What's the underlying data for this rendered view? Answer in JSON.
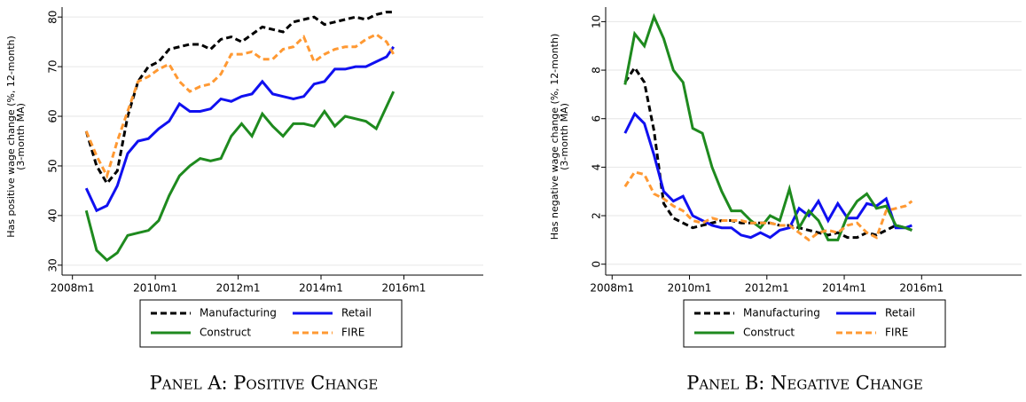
{
  "chart_data": [
    {
      "type": "line",
      "caption": "Panel A: Positive Change",
      "ylabel": [
        "Has positive wage change (%, 12-month)",
        "(3-month MA)"
      ],
      "x": [
        "2008m5",
        "2008m8",
        "2008m11",
        "2009m2",
        "2009m5",
        "2009m8",
        "2009m11",
        "2010m2",
        "2010m5",
        "2010m8",
        "2010m11",
        "2011m2",
        "2011m5",
        "2011m8",
        "2011m11",
        "2012m2",
        "2012m5",
        "2012m8",
        "2012m11",
        "2013m2",
        "2013m5",
        "2013m8",
        "2013m11",
        "2014m2",
        "2014m5",
        "2014m8",
        "2014m11",
        "2015m2",
        "2015m5",
        "2015m8",
        "2015m10"
      ],
      "xlim": [
        "2007m10",
        "2017m12"
      ],
      "xticks": [
        "2008m1",
        "2010m1",
        "2012m1",
        "2014m1",
        "2016m1"
      ],
      "ylim": [
        28,
        82
      ],
      "yticks": [
        30,
        40,
        50,
        60,
        70,
        80
      ],
      "grid": true,
      "series": [
        {
          "name": "Manufacturing",
          "color": "#000000",
          "dashed": true,
          "values": [
            57,
            50,
            46.5,
            49,
            60,
            67,
            70,
            71,
            73.5,
            74,
            74.5,
            74.5,
            73.5,
            75.5,
            76,
            75,
            76.5,
            78,
            77.5,
            77,
            79,
            79.5,
            80,
            78.5,
            79,
            79.5,
            80,
            79.5,
            80.5,
            81,
            81
          ]
        },
        {
          "name": "Retail",
          "color": "#1010f0",
          "dashed": false,
          "values": [
            45.5,
            41,
            42,
            46,
            52.5,
            55,
            55.5,
            57.5,
            59,
            62.5,
            61,
            61,
            61.5,
            63.5,
            63,
            64,
            64.5,
            67,
            64.5,
            64,
            63.5,
            64,
            66.5,
            67,
            69.5,
            69.5,
            70,
            70,
            71,
            72,
            74
          ]
        },
        {
          "name": "Construct",
          "color": "#1e8a1e",
          "dashed": false,
          "values": [
            41,
            33,
            31,
            32.5,
            36,
            36.5,
            37,
            39,
            44,
            48,
            50,
            51.5,
            51,
            51.5,
            56,
            58.5,
            56,
            60.5,
            58,
            56,
            58.5,
            58.5,
            58,
            61,
            58,
            60,
            59.5,
            59,
            57.5,
            62,
            65
          ]
        },
        {
          "name": "FIRE",
          "color": "#ff9933",
          "dashed": true,
          "values": [
            57,
            52,
            48,
            55,
            61,
            67,
            68,
            69.5,
            70.5,
            67,
            65,
            66,
            66.5,
            68.5,
            72.5,
            72.5,
            73,
            71.5,
            71.5,
            73.5,
            74,
            76,
            71,
            72.5,
            73.5,
            74,
            74,
            75.5,
            76.5,
            75,
            72.5
          ]
        }
      ]
    },
    {
      "type": "line",
      "caption": "Panel B: Negative Change",
      "ylabel": [
        "Has negative wage change (%, 12-month)",
        "(3-month MA)"
      ],
      "x": [
        "2008m5",
        "2008m8",
        "2008m11",
        "2009m2",
        "2009m5",
        "2009m8",
        "2009m11",
        "2010m2",
        "2010m5",
        "2010m8",
        "2010m11",
        "2011m2",
        "2011m5",
        "2011m8",
        "2011m11",
        "2012m2",
        "2012m5",
        "2012m8",
        "2012m11",
        "2013m2",
        "2013m5",
        "2013m8",
        "2013m11",
        "2014m2",
        "2014m5",
        "2014m8",
        "2014m11",
        "2015m2",
        "2015m5",
        "2015m8",
        "2015m10"
      ],
      "xlim": [
        "2007m11",
        "2018m8"
      ],
      "xticks": [
        "2008m1",
        "2010m1",
        "2012m1",
        "2014m1",
        "2016m1"
      ],
      "ylim": [
        -0.45,
        10.6
      ],
      "yticks": [
        0,
        2,
        4,
        6,
        8,
        10
      ],
      "grid": true,
      "series": [
        {
          "name": "Manufacturing",
          "color": "#000000",
          "dashed": true,
          "values": [
            7.5,
            8.1,
            7.5,
            5.5,
            2.5,
            1.9,
            1.7,
            1.5,
            1.6,
            1.7,
            1.8,
            1.8,
            1.7,
            1.7,
            1.7,
            1.7,
            1.6,
            1.6,
            1.5,
            1.4,
            1.3,
            1.2,
            1.3,
            1.1,
            1.1,
            1.3,
            1.2,
            1.4,
            1.6,
            1.5,
            1.4
          ]
        },
        {
          "name": "Retail",
          "color": "#1010f0",
          "dashed": false,
          "values": [
            5.4,
            6.2,
            5.8,
            4.5,
            3.0,
            2.6,
            2.8,
            2.0,
            1.8,
            1.6,
            1.5,
            1.5,
            1.2,
            1.1,
            1.3,
            1.1,
            1.4,
            1.5,
            2.3,
            2.0,
            2.6,
            1.8,
            2.5,
            1.9,
            1.9,
            2.5,
            2.4,
            2.7,
            1.5,
            1.5,
            1.6
          ]
        },
        {
          "name": "Construct",
          "color": "#1e8a1e",
          "dashed": false,
          "values": [
            7.4,
            9.5,
            9.0,
            10.2,
            9.3,
            8.0,
            7.5,
            5.6,
            5.4,
            4.0,
            3.0,
            2.2,
            2.2,
            1.8,
            1.5,
            2.0,
            1.8,
            3.1,
            1.5,
            2.2,
            1.8,
            1.0,
            1.0,
            2.0,
            2.6,
            2.9,
            2.3,
            2.4,
            1.6,
            1.5,
            1.4
          ]
        },
        {
          "name": "FIRE",
          "color": "#ff9933",
          "dashed": true,
          "values": [
            3.2,
            3.8,
            3.7,
            2.9,
            2.7,
            2.4,
            2.2,
            1.8,
            1.7,
            1.9,
            1.8,
            1.8,
            1.8,
            1.7,
            1.7,
            1.7,
            1.6,
            1.6,
            1.3,
            1.0,
            1.3,
            1.4,
            1.3,
            1.6,
            1.7,
            1.3,
            1.1,
            2.2,
            2.3,
            2.4,
            2.6
          ]
        }
      ]
    }
  ]
}
